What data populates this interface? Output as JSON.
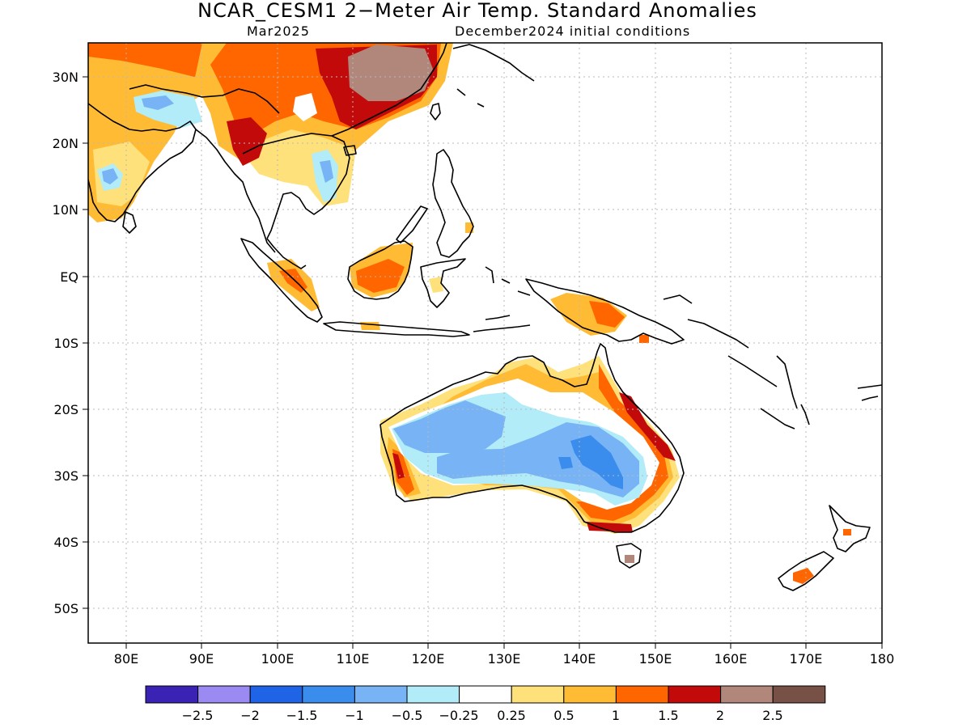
{
  "header": {
    "title": "NCAR_CESM1 2-Meter Air Temp. Standard Anomalies",
    "subtitle_left": "Mar2025",
    "subtitle_right": "December2024 initial conditions"
  },
  "map": {
    "lon_range": [
      75,
      180
    ],
    "lat_range": [
      -55,
      35
    ],
    "lon_ticks": [
      "80E",
      "90E",
      "100E",
      "110E",
      "120E",
      "130E",
      "140E",
      "150E",
      "160E",
      "170E",
      "180"
    ],
    "lat_ticks": [
      "30N",
      "20N",
      "10N",
      "EQ",
      "10S",
      "20S",
      "30S",
      "40S",
      "50S"
    ],
    "gridlines": true
  },
  "colorbar": {
    "colors": [
      "#3a23b4",
      "#9b8af2",
      "#1f64e6",
      "#3a8ced",
      "#78b3f5",
      "#b1ecf8",
      "#ffffff",
      "#fee17a",
      "#ffbb33",
      "#ff6600",
      "#c20a0a",
      "#b0877a",
      "#785146"
    ],
    "labels": [
      "-2.5",
      "-2",
      "-1.5",
      "-1",
      "-0.5",
      "-0.25",
      "0.25",
      "0.5",
      "1",
      "1.5",
      "2",
      "2.5"
    ]
  }
}
